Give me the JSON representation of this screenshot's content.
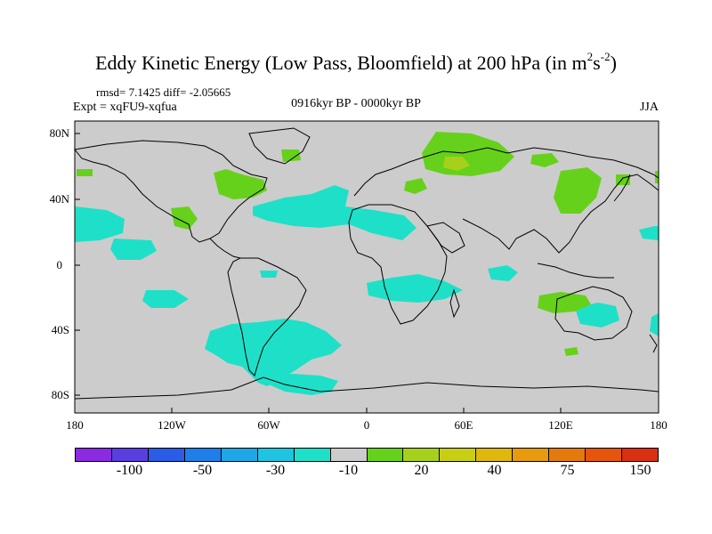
{
  "title": {
    "main": "Eddy Kinetic Energy (Low Pass, Bloomfield) at 200 hPa (in m",
    "sup1": "2",
    "mid": "s",
    "sup2": "-2",
    "end": ")"
  },
  "stats": "rmsd= 7.1425 diff= -2.05665",
  "expt": "Expt = xqFU9-xqfua",
  "period": "0916kyr BP - 0000kyr BP",
  "season": "JJA",
  "map": {
    "background": "#cccccc",
    "lat_labels": [
      "80N",
      "40N",
      "0",
      "40S",
      "80S"
    ],
    "lon_labels": [
      "180",
      "120W",
      "60W",
      "0",
      "60E",
      "120E",
      "180"
    ]
  },
  "colorbar": {
    "colors": [
      "#8a2be2",
      "#5a3fe0",
      "#2b5ce6",
      "#1e7fe8",
      "#1fa6e6",
      "#1fc4e0",
      "#1ee0c8",
      "#cccccc",
      "#66d11a",
      "#a6d11a",
      "#c8cf12",
      "#e0b70c",
      "#e69a0c",
      "#e57a0c",
      "#e5550c",
      "#d93010"
    ],
    "labels": [
      "-100",
      "-50",
      "-30",
      "-10",
      "20",
      "40",
      "75",
      "150"
    ]
  },
  "legend_colors": {
    "cyan": "#1ee0c8",
    "green": "#66d11a",
    "yellowgreen": "#a6d11a"
  }
}
